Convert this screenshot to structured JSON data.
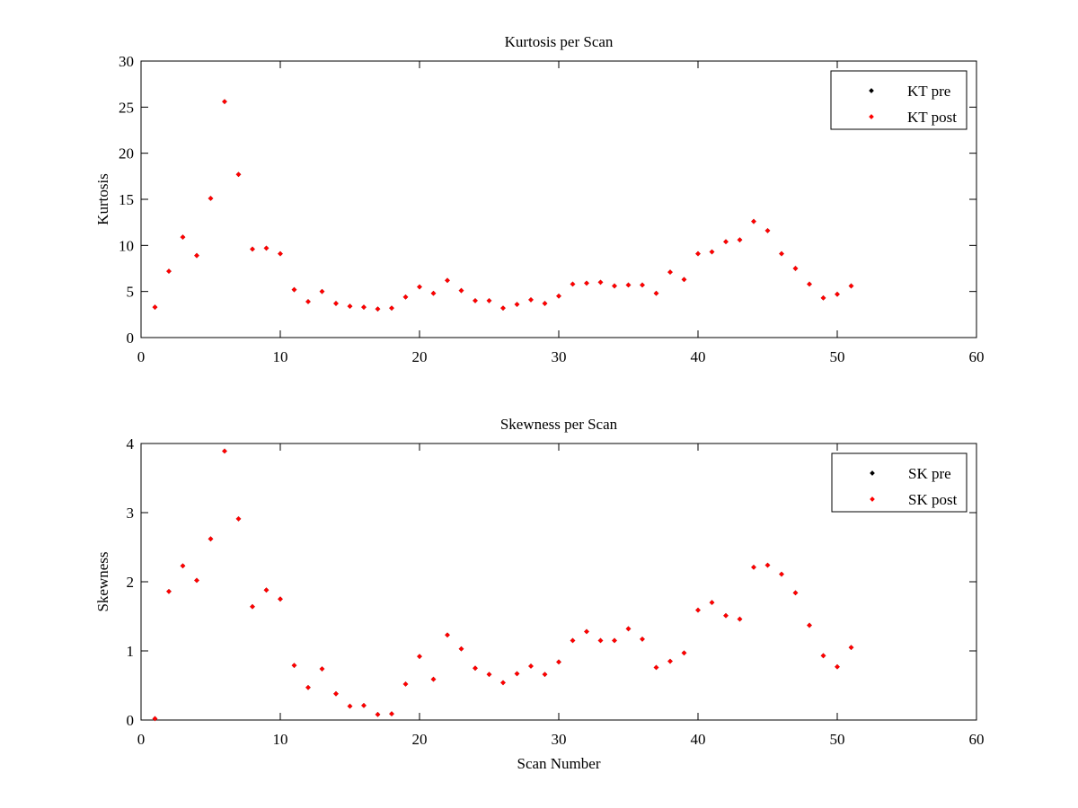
{
  "chart_data": [
    {
      "type": "scatter",
      "title": "Kurtosis per Scan",
      "xlabel": "",
      "ylabel": "Kurtosis",
      "xlim": [
        0,
        60
      ],
      "ylim": [
        0,
        30
      ],
      "xticks": [
        "0",
        "10",
        "20",
        "30",
        "40",
        "50",
        "60"
      ],
      "yticks": [
        "0",
        "5",
        "10",
        "15",
        "20",
        "25",
        "30"
      ],
      "xtick_values": [
        0,
        10,
        20,
        30,
        40,
        50,
        60
      ],
      "ytick_values": [
        0,
        5,
        10,
        15,
        20,
        25,
        30
      ],
      "grid": false,
      "legend_position": "top-right",
      "series": [
        {
          "name": "KT pre",
          "color": "#000000",
          "x": [
            1,
            2,
            3,
            4,
            5,
            6,
            7,
            8,
            9,
            10,
            11,
            12,
            13,
            14,
            15,
            16,
            17,
            18,
            19,
            20,
            21,
            22,
            23,
            24,
            25,
            26,
            27,
            28,
            29,
            30,
            31,
            32,
            33,
            34,
            35,
            36,
            37,
            38,
            39,
            40,
            41,
            42,
            43,
            44,
            45,
            46,
            47,
            48,
            49,
            50,
            51
          ],
          "y": [
            3.3,
            7.2,
            10.9,
            8.9,
            15.1,
            25.6,
            17.7,
            9.6,
            9.7,
            9.1,
            5.2,
            3.9,
            5.0,
            3.7,
            3.4,
            3.3,
            3.1,
            3.2,
            4.4,
            5.5,
            4.8,
            6.2,
            5.1,
            4.0,
            4.0,
            3.2,
            3.6,
            4.1,
            3.7,
            4.5,
            5.8,
            5.9,
            6.0,
            5.6,
            5.7,
            5.7,
            4.8,
            7.1,
            6.3,
            9.1,
            9.3,
            10.4,
            10.6,
            12.6,
            11.6,
            9.1,
            7.5,
            5.8,
            4.3,
            4.7,
            5.6
          ]
        },
        {
          "name": "KT post",
          "color": "#ff0000",
          "x": [
            1,
            2,
            3,
            4,
            5,
            6,
            7,
            8,
            9,
            10,
            11,
            12,
            13,
            14,
            15,
            16,
            17,
            18,
            19,
            20,
            21,
            22,
            23,
            24,
            25,
            26,
            27,
            28,
            29,
            30,
            31,
            32,
            33,
            34,
            35,
            36,
            37,
            38,
            39,
            40,
            41,
            42,
            43,
            44,
            45,
            46,
            47,
            48,
            49,
            50,
            51
          ],
          "y": [
            3.3,
            7.2,
            10.9,
            8.9,
            15.1,
            25.6,
            17.7,
            9.6,
            9.7,
            9.1,
            5.2,
            3.9,
            5.0,
            3.7,
            3.4,
            3.3,
            3.1,
            3.2,
            4.4,
            5.5,
            4.8,
            6.2,
            5.1,
            4.0,
            4.0,
            3.2,
            3.6,
            4.1,
            3.7,
            4.5,
            5.8,
            5.9,
            6.0,
            5.6,
            5.7,
            5.7,
            4.8,
            7.1,
            6.3,
            9.1,
            9.3,
            10.4,
            10.6,
            12.6,
            11.6,
            9.1,
            7.5,
            5.8,
            4.3,
            4.7,
            5.6
          ]
        }
      ]
    },
    {
      "type": "scatter",
      "title": "Skewness per Scan",
      "xlabel": "Scan Number",
      "ylabel": "Skewness",
      "xlim": [
        0,
        60
      ],
      "ylim": [
        0,
        4
      ],
      "xticks": [
        "0",
        "10",
        "20",
        "30",
        "40",
        "50",
        "60"
      ],
      "yticks": [
        "0",
        "1",
        "2",
        "3",
        "4"
      ],
      "xtick_values": [
        0,
        10,
        20,
        30,
        40,
        50,
        60
      ],
      "ytick_values": [
        0,
        1,
        2,
        3,
        4
      ],
      "grid": false,
      "legend_position": "top-right",
      "series": [
        {
          "name": "SK pre",
          "color": "#000000",
          "x": [
            1,
            2,
            3,
            4,
            5,
            6,
            7,
            8,
            9,
            10,
            11,
            12,
            13,
            14,
            15,
            16,
            17,
            18,
            19,
            20,
            21,
            22,
            23,
            24,
            25,
            26,
            27,
            28,
            29,
            30,
            31,
            32,
            33,
            34,
            35,
            36,
            37,
            38,
            39,
            40,
            41,
            42,
            43,
            44,
            45,
            46,
            47,
            48,
            49,
            50,
            51
          ],
          "y": [
            0.02,
            1.86,
            2.23,
            2.02,
            2.62,
            3.89,
            2.91,
            1.64,
            1.88,
            1.75,
            0.79,
            0.47,
            0.74,
            0.38,
            0.2,
            0.21,
            0.08,
            0.09,
            0.52,
            0.92,
            0.59,
            1.23,
            1.03,
            0.75,
            0.66,
            0.54,
            0.67,
            0.78,
            0.66,
            0.84,
            1.15,
            1.28,
            1.15,
            1.15,
            1.32,
            1.17,
            0.76,
            0.85,
            0.97,
            1.59,
            1.7,
            1.51,
            1.46,
            2.21,
            2.24,
            2.11,
            1.84,
            1.37,
            0.93,
            0.77,
            1.05
          ]
        },
        {
          "name": "SK post",
          "color": "#ff0000",
          "x": [
            1,
            2,
            3,
            4,
            5,
            6,
            7,
            8,
            9,
            10,
            11,
            12,
            13,
            14,
            15,
            16,
            17,
            18,
            19,
            20,
            21,
            22,
            23,
            24,
            25,
            26,
            27,
            28,
            29,
            30,
            31,
            32,
            33,
            34,
            35,
            36,
            37,
            38,
            39,
            40,
            41,
            42,
            43,
            44,
            45,
            46,
            47,
            48,
            49,
            50,
            51
          ],
          "y": [
            0.02,
            1.86,
            2.23,
            2.02,
            2.62,
            3.89,
            2.91,
            1.64,
            1.88,
            1.75,
            0.79,
            0.47,
            0.74,
            0.38,
            0.2,
            0.21,
            0.08,
            0.09,
            0.52,
            0.92,
            0.59,
            1.23,
            1.03,
            0.75,
            0.66,
            0.54,
            0.67,
            0.78,
            0.66,
            0.84,
            1.15,
            1.28,
            1.15,
            1.15,
            1.32,
            1.17,
            0.76,
            0.85,
            0.97,
            1.59,
            1.7,
            1.51,
            1.46,
            2.21,
            2.24,
            2.11,
            1.84,
            1.37,
            0.93,
            0.77,
            1.05
          ]
        }
      ]
    }
  ]
}
